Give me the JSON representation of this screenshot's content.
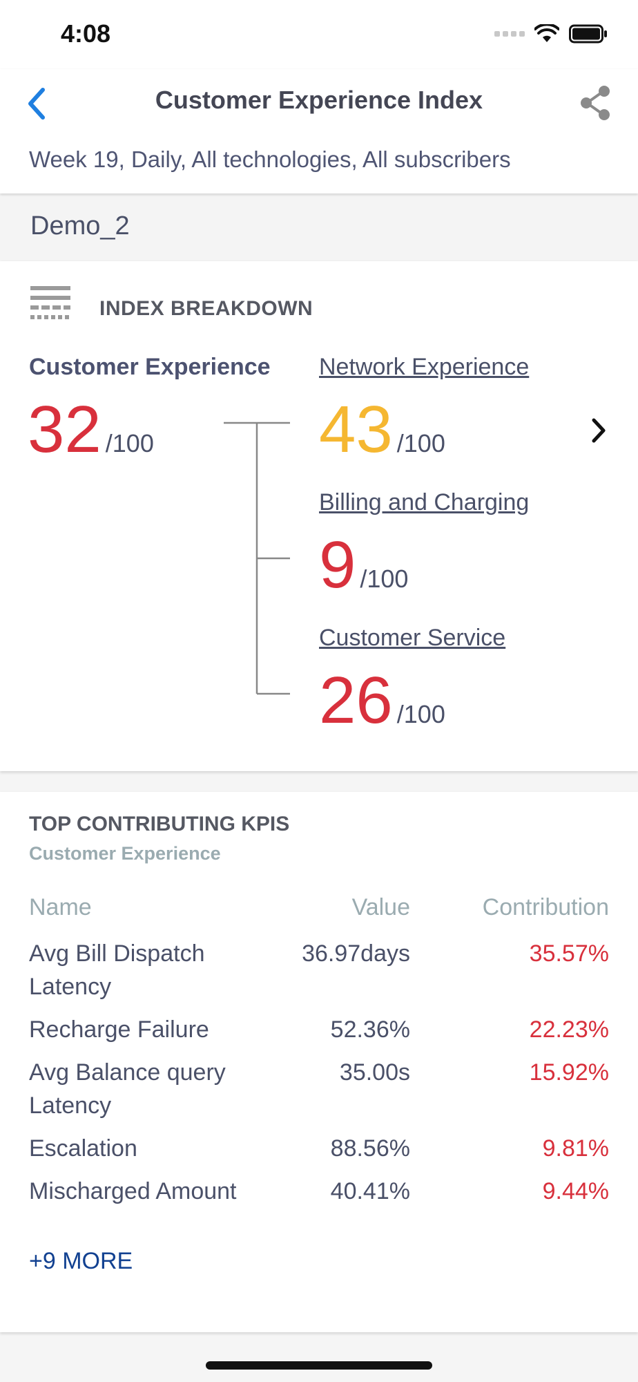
{
  "status_bar": {
    "time": "4:08"
  },
  "header": {
    "title": "Customer Experience Index",
    "subtitle": "Week 19, Daily, All technologies, All subscribers"
  },
  "profile": {
    "name": "Demo_2"
  },
  "breakdown": {
    "heading": "INDEX BREAKDOWN",
    "main": {
      "label": "Customer Experience",
      "score": "32",
      "denominator": "/100"
    },
    "children": [
      {
        "label": "Network Experience",
        "score": "43",
        "denominator": "/100",
        "color": "#f5b731"
      },
      {
        "label": "Billing and Charging",
        "score": "9",
        "denominator": "/100",
        "color": "#d8303c"
      },
      {
        "label": "Customer Service",
        "score": "26",
        "denominator": "/100",
        "color": "#d8303c"
      }
    ]
  },
  "kpis": {
    "heading": "TOP CONTRIBUTING KPIS",
    "subheading": "Customer Experience",
    "columns": {
      "name": "Name",
      "value": "Value",
      "contribution": "Contribution"
    },
    "rows": [
      {
        "name": "Avg Bill Dispatch Latency",
        "value": "36.97days",
        "contribution": "35.57%"
      },
      {
        "name": "Recharge Failure",
        "value": "52.36%",
        "contribution": "22.23%"
      },
      {
        "name": "Avg Balance query Latency",
        "value": "35.00s",
        "contribution": "15.92%"
      },
      {
        "name": "Escalation",
        "value": "88.56%",
        "contribution": "9.81%"
      },
      {
        "name": "Mischarged Amount",
        "value": "40.41%",
        "contribution": "9.44%"
      }
    ],
    "more_label": "+9 MORE"
  },
  "colors": {
    "accent": "#124191",
    "back": "#1f7fe0",
    "bad": "#d8303c",
    "warn": "#f5b731"
  }
}
